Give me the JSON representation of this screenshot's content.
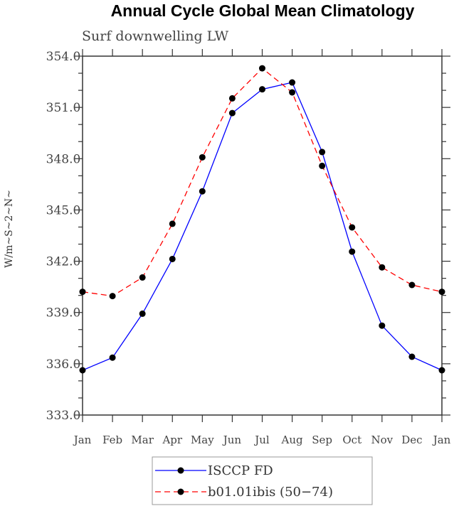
{
  "chart_data": {
    "type": "line",
    "title": "Annual Cycle Global Mean Climatology",
    "subtitle": "Surf downwelling LW",
    "xlabel": "",
    "ylabel": "W/m~S~2~N~",
    "categories": [
      "Jan",
      "Feb",
      "Mar",
      "Apr",
      "May",
      "Jun",
      "Jul",
      "Aug",
      "Sep",
      "Oct",
      "Nov",
      "Dec",
      "Jan"
    ],
    "ylim": [
      333.0,
      354.0
    ],
    "yticks": [
      "333.0",
      "336.0",
      "339.0",
      "342.0",
      "345.0",
      "348.0",
      "351.0",
      "354.0"
    ],
    "ytick_values": [
      333,
      336,
      339,
      342,
      345,
      348,
      351,
      354
    ],
    "yminor_step": 1,
    "grid": false,
    "legend_position": "bottom-center",
    "series": [
      {
        "name": "ISCCP FD",
        "color": "#0000ff",
        "dash": "solid",
        "marker": "filled-circle",
        "values": [
          335.62,
          336.36,
          338.93,
          342.13,
          346.09,
          350.67,
          352.06,
          352.46,
          348.39,
          342.56,
          338.23,
          336.41,
          335.62
        ]
      },
      {
        "name": "b01.01ibis (50−74)",
        "color": "#ff0000",
        "dash": "dashed",
        "marker": "filled-circle",
        "values": [
          340.21,
          339.96,
          341.05,
          344.19,
          348.08,
          351.53,
          353.29,
          351.88,
          347.58,
          343.98,
          341.64,
          340.61,
          340.21
        ]
      }
    ]
  }
}
